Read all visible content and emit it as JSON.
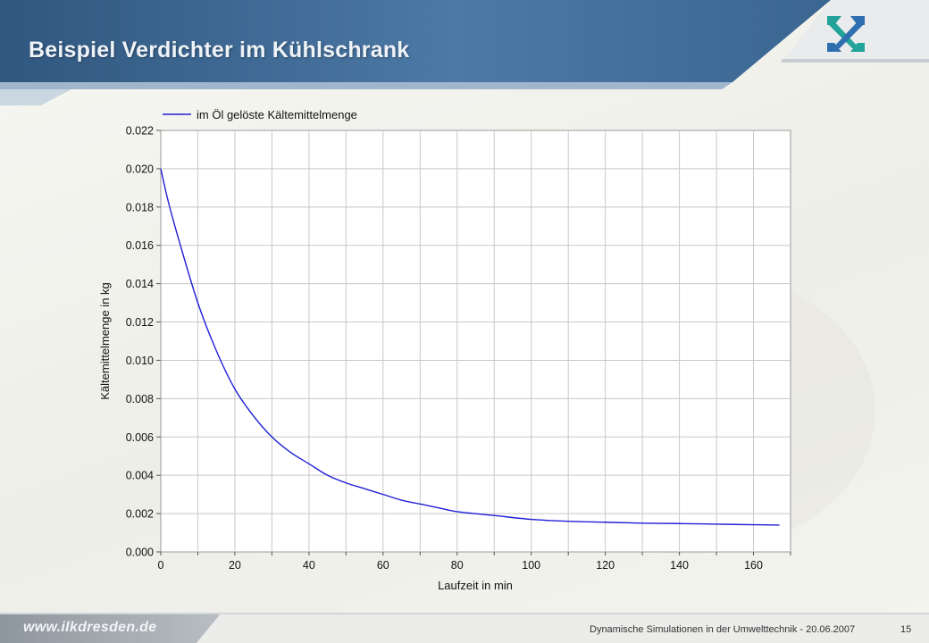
{
  "slide": {
    "title": "Beispiel Verdichter im Kühlschrank",
    "footer_url": "www.ilkdresden.de",
    "footer_text": "Dynamische Simulationen in der Umwelttechnik - 20.06.2007",
    "page_number": "15"
  },
  "colors": {
    "header_blue": "#3b6590",
    "header_dark": "#2c4f74",
    "accent_teal": "#22a39a",
    "logo_blue": "#2f6fb0",
    "series_line": "#1f1fd6",
    "grid": "#c8c8c8"
  },
  "logo": {
    "name": "ilk-logo"
  },
  "chart_data": {
    "type": "line",
    "title": "",
    "xlabel": "Laufzeit in min",
    "ylabel": "Kältemittelmenge in kg",
    "xlim": [
      0,
      170
    ],
    "ylim": [
      0,
      0.022
    ],
    "xticks": [
      "0",
      "20",
      "40",
      "60",
      "80",
      "100",
      "120",
      "140",
      "160"
    ],
    "yticks": [
      "0.000",
      "0.002",
      "0.004",
      "0.006",
      "0.008",
      "0.010",
      "0.012",
      "0.014",
      "0.016",
      "0.018",
      "0.020",
      "0.022"
    ],
    "grid": true,
    "legend_position": "top-left",
    "series": [
      {
        "name": "im Öl gelöste Kältemittelmenge",
        "x": [
          0,
          2,
          5,
          10,
          15,
          20,
          25,
          30,
          35,
          40,
          45,
          50,
          55,
          60,
          65,
          70,
          75,
          80,
          90,
          100,
          110,
          120,
          130,
          140,
          150,
          160,
          167
        ],
        "y": [
          0.02,
          0.0183,
          0.0162,
          0.013,
          0.0105,
          0.0085,
          0.0071,
          0.006,
          0.0052,
          0.0046,
          0.004,
          0.0036,
          0.0033,
          0.003,
          0.0027,
          0.0025,
          0.0023,
          0.0021,
          0.0019,
          0.0017,
          0.0016,
          0.00155,
          0.0015,
          0.00148,
          0.00145,
          0.00142,
          0.0014
        ]
      }
    ]
  }
}
